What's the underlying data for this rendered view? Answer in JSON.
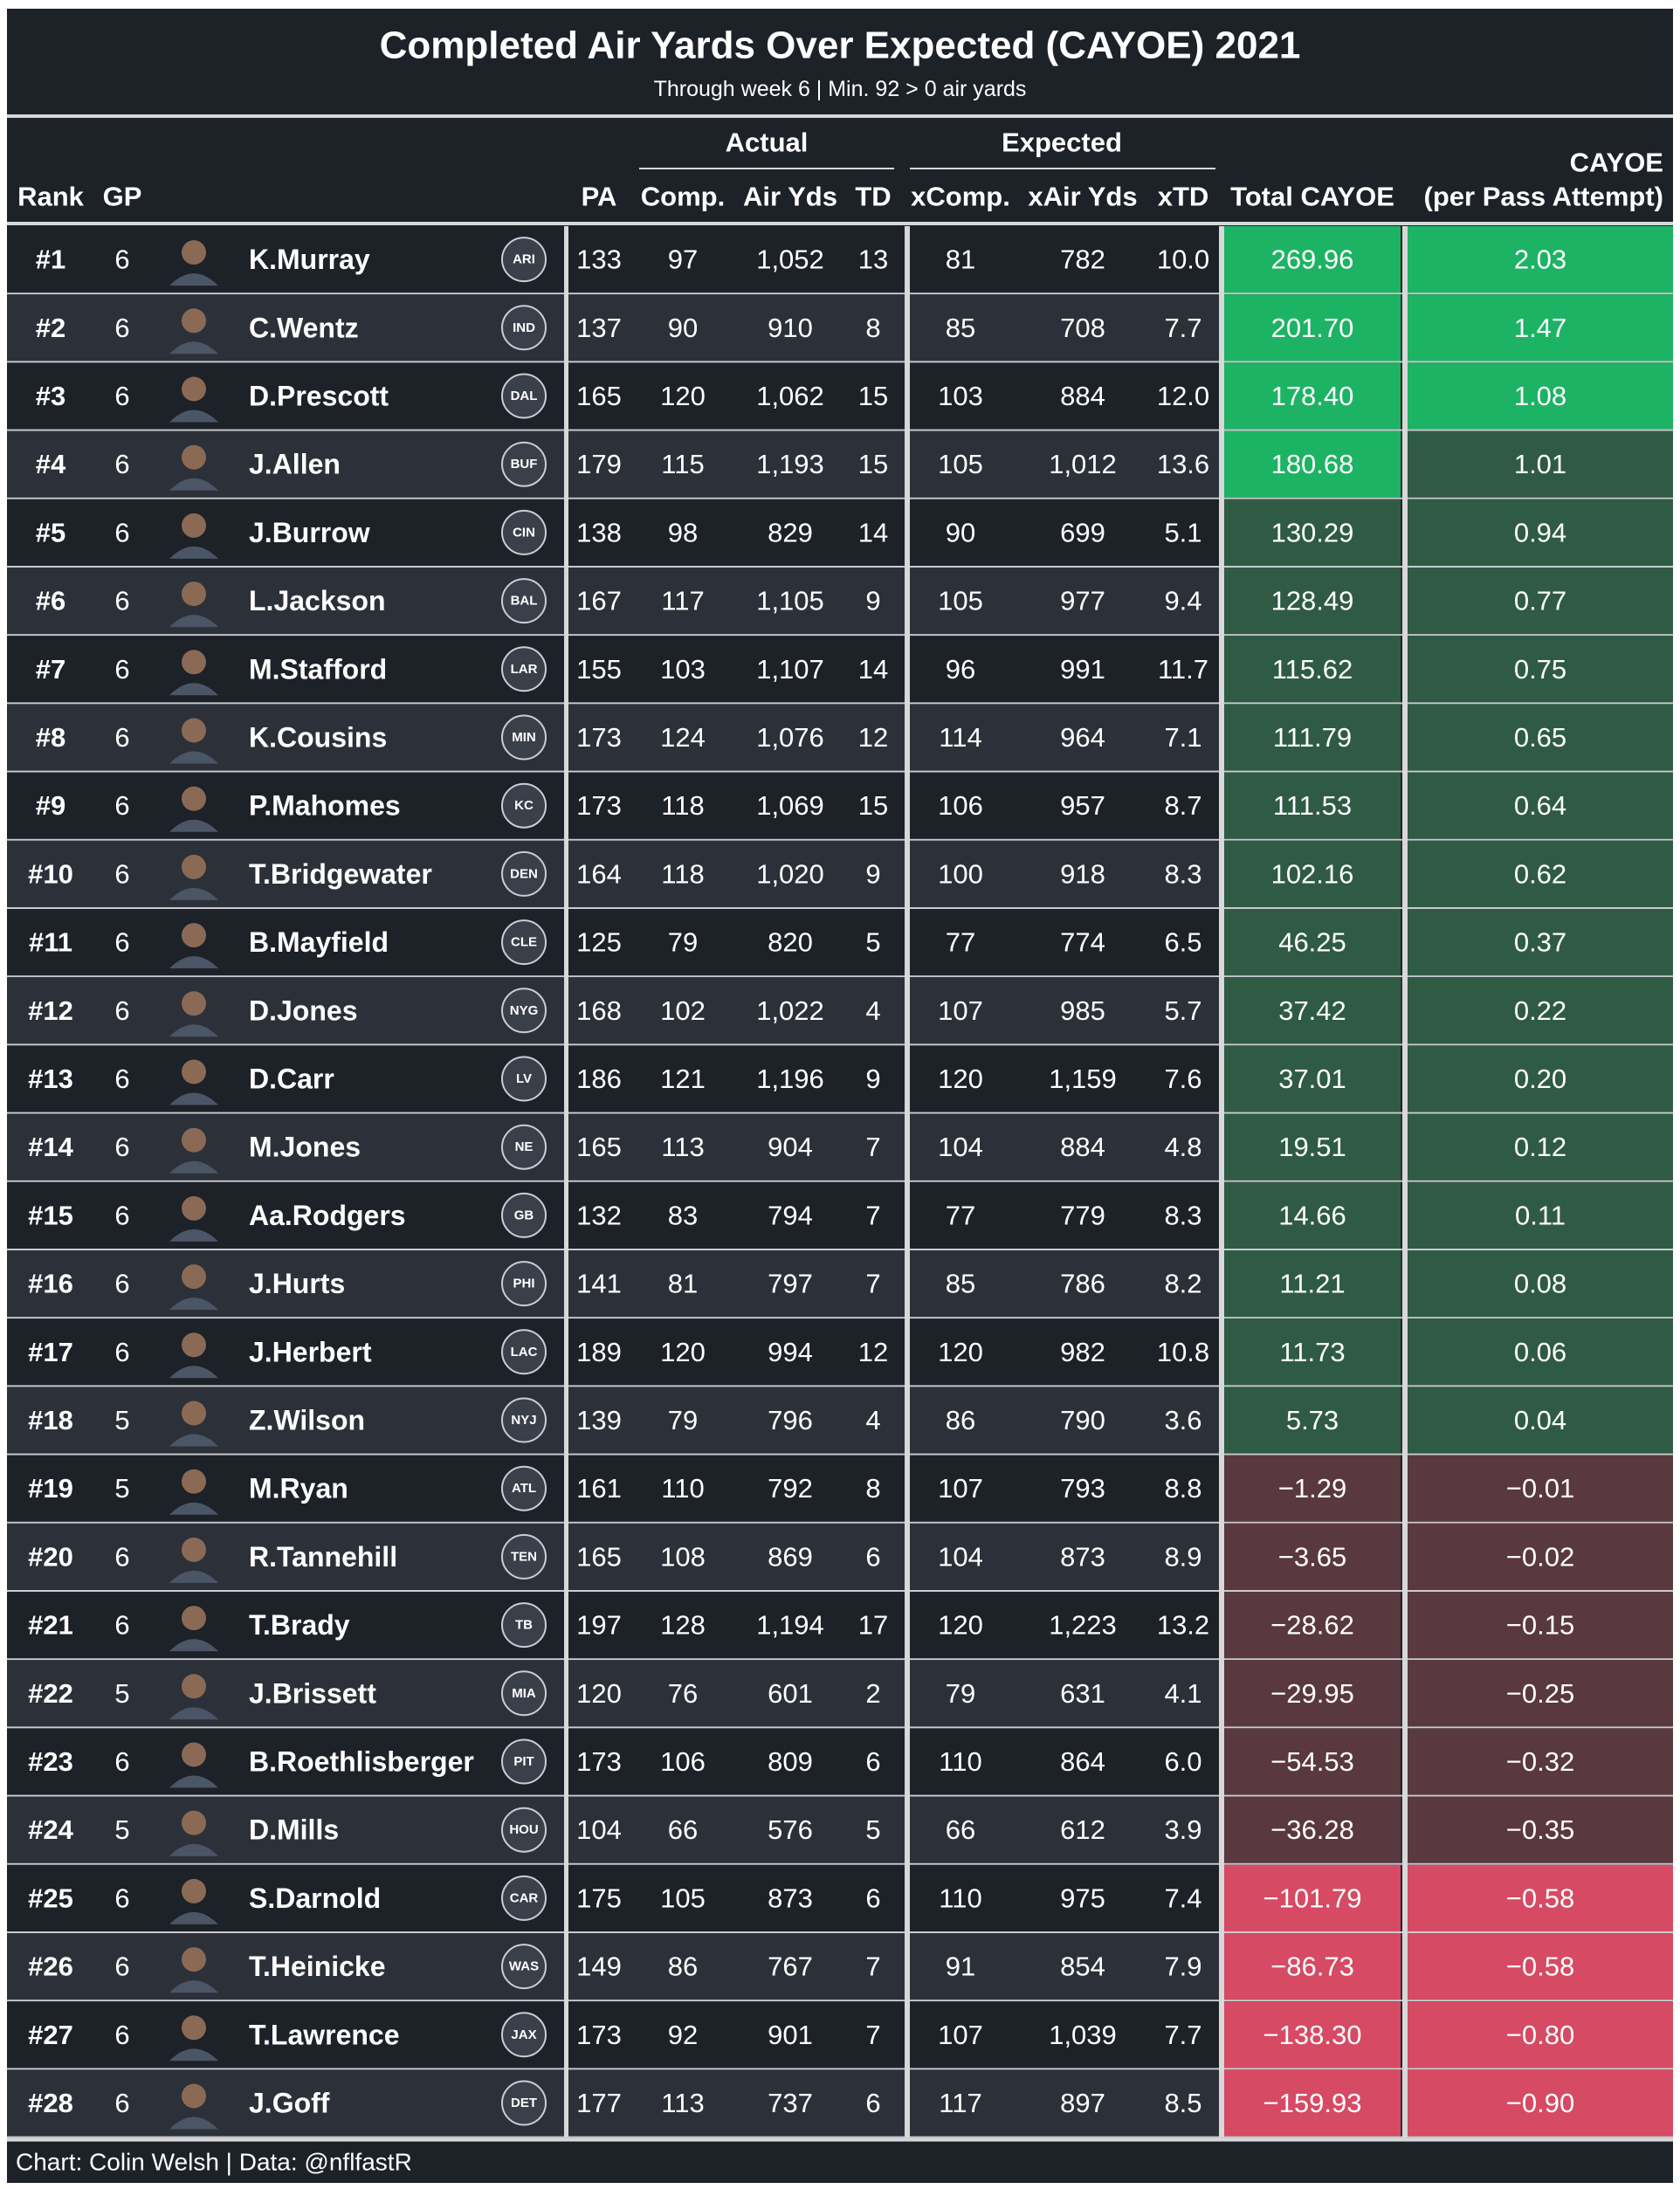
{
  "title": "Completed Air Yards Over Expected (CAYOE) 2021",
  "subtitle": "Through week 6 | Min. 92 > 0 air yards",
  "footer": "Chart: Colin Welsh | Data: @nflfastR",
  "group_headers": {
    "actual": "Actual",
    "expected": "Expected"
  },
  "columns": {
    "rank": "Rank",
    "gp": "GP",
    "pa": "PA",
    "comp": "Comp.",
    "air_yds": "Air Yds",
    "td": "TD",
    "xcomp": "xComp.",
    "xair_yds": "xAir Yds",
    "xtd": "xTD",
    "total_cayoe": "Total CAYOE",
    "cayoe_top": "CAYOE",
    "cayoe_bottom": "(per Pass Attempt)"
  },
  "colors": {
    "background": "#1d2128",
    "row_dark": "#1d2128",
    "row_light": "#2c3139",
    "separator": "#d8d8d8",
    "text": "#ffffff",
    "pos_strong": "#1db364",
    "pos_mid": "#2f5b45",
    "neg_mid": "#5a3840",
    "neg_strong": "#d64a63"
  },
  "chart_data": {
    "type": "table",
    "rows": [
      {
        "rank": "#1",
        "gp": 6,
        "player": "K.Murray",
        "team": "ARI",
        "team_icon": "cardinals-logo-icon",
        "pa": 133,
        "comp": 97,
        "air_yds": "1,052",
        "td": 13,
        "xcomp": 81,
        "xair_yds": "782",
        "xtd": "10.0",
        "total_cayoe": "269.96",
        "cayoe_per_pa": "2.03",
        "tier_total": "pos_strong",
        "tier_pa": "pos_strong"
      },
      {
        "rank": "#2",
        "gp": 6,
        "player": "C.Wentz",
        "team": "IND",
        "team_icon": "colts-logo-icon",
        "pa": 137,
        "comp": 90,
        "air_yds": "910",
        "td": 8,
        "xcomp": 85,
        "xair_yds": "708",
        "xtd": "7.7",
        "total_cayoe": "201.70",
        "cayoe_per_pa": "1.47",
        "tier_total": "pos_strong",
        "tier_pa": "pos_strong"
      },
      {
        "rank": "#3",
        "gp": 6,
        "player": "D.Prescott",
        "team": "DAL",
        "team_icon": "cowboys-logo-icon",
        "pa": 165,
        "comp": 120,
        "air_yds": "1,062",
        "td": 15,
        "xcomp": 103,
        "xair_yds": "884",
        "xtd": "12.0",
        "total_cayoe": "178.40",
        "cayoe_per_pa": "1.08",
        "tier_total": "pos_strong",
        "tier_pa": "pos_strong"
      },
      {
        "rank": "#4",
        "gp": 6,
        "player": "J.Allen",
        "team": "BUF",
        "team_icon": "bills-logo-icon",
        "pa": 179,
        "comp": 115,
        "air_yds": "1,193",
        "td": 15,
        "xcomp": 105,
        "xair_yds": "1,012",
        "xtd": "13.6",
        "total_cayoe": "180.68",
        "cayoe_per_pa": "1.01",
        "tier_total": "pos_strong",
        "tier_pa": "pos_mid"
      },
      {
        "rank": "#5",
        "gp": 6,
        "player": "J.Burrow",
        "team": "CIN",
        "team_icon": "bengals-logo-icon",
        "pa": 138,
        "comp": 98,
        "air_yds": "829",
        "td": 14,
        "xcomp": 90,
        "xair_yds": "699",
        "xtd": "5.1",
        "total_cayoe": "130.29",
        "cayoe_per_pa": "0.94",
        "tier_total": "pos_mid",
        "tier_pa": "pos_mid"
      },
      {
        "rank": "#6",
        "gp": 6,
        "player": "L.Jackson",
        "team": "BAL",
        "team_icon": "ravens-logo-icon",
        "pa": 167,
        "comp": 117,
        "air_yds": "1,105",
        "td": 9,
        "xcomp": 105,
        "xair_yds": "977",
        "xtd": "9.4",
        "total_cayoe": "128.49",
        "cayoe_per_pa": "0.77",
        "tier_total": "pos_mid",
        "tier_pa": "pos_mid"
      },
      {
        "rank": "#7",
        "gp": 6,
        "player": "M.Stafford",
        "team": "LAR",
        "team_icon": "rams-logo-icon",
        "pa": 155,
        "comp": 103,
        "air_yds": "1,107",
        "td": 14,
        "xcomp": 96,
        "xair_yds": "991",
        "xtd": "11.7",
        "total_cayoe": "115.62",
        "cayoe_per_pa": "0.75",
        "tier_total": "pos_mid",
        "tier_pa": "pos_mid"
      },
      {
        "rank": "#8",
        "gp": 6,
        "player": "K.Cousins",
        "team": "MIN",
        "team_icon": "vikings-logo-icon",
        "pa": 173,
        "comp": 124,
        "air_yds": "1,076",
        "td": 12,
        "xcomp": 114,
        "xair_yds": "964",
        "xtd": "7.1",
        "total_cayoe": "111.79",
        "cayoe_per_pa": "0.65",
        "tier_total": "pos_mid",
        "tier_pa": "pos_mid"
      },
      {
        "rank": "#9",
        "gp": 6,
        "player": "P.Mahomes",
        "team": "KC",
        "team_icon": "chiefs-logo-icon",
        "pa": 173,
        "comp": 118,
        "air_yds": "1,069",
        "td": 15,
        "xcomp": 106,
        "xair_yds": "957",
        "xtd": "8.7",
        "total_cayoe": "111.53",
        "cayoe_per_pa": "0.64",
        "tier_total": "pos_mid",
        "tier_pa": "pos_mid"
      },
      {
        "rank": "#10",
        "gp": 6,
        "player": "T.Bridgewater",
        "team": "DEN",
        "team_icon": "broncos-logo-icon",
        "pa": 164,
        "comp": 118,
        "air_yds": "1,020",
        "td": 9,
        "xcomp": 100,
        "xair_yds": "918",
        "xtd": "8.3",
        "total_cayoe": "102.16",
        "cayoe_per_pa": "0.62",
        "tier_total": "pos_mid",
        "tier_pa": "pos_mid"
      },
      {
        "rank": "#11",
        "gp": 6,
        "player": "B.Mayfield",
        "team": "CLE",
        "team_icon": "browns-logo-icon",
        "pa": 125,
        "comp": 79,
        "air_yds": "820",
        "td": 5,
        "xcomp": 77,
        "xair_yds": "774",
        "xtd": "6.5",
        "total_cayoe": "46.25",
        "cayoe_per_pa": "0.37",
        "tier_total": "pos_mid",
        "tier_pa": "pos_mid"
      },
      {
        "rank": "#12",
        "gp": 6,
        "player": "D.Jones",
        "team": "NYG",
        "team_icon": "giants-logo-icon",
        "pa": 168,
        "comp": 102,
        "air_yds": "1,022",
        "td": 4,
        "xcomp": 107,
        "xair_yds": "985",
        "xtd": "5.7",
        "total_cayoe": "37.42",
        "cayoe_per_pa": "0.22",
        "tier_total": "pos_mid",
        "tier_pa": "pos_mid"
      },
      {
        "rank": "#13",
        "gp": 6,
        "player": "D.Carr",
        "team": "LV",
        "team_icon": "raiders-logo-icon",
        "pa": 186,
        "comp": 121,
        "air_yds": "1,196",
        "td": 9,
        "xcomp": 120,
        "xair_yds": "1,159",
        "xtd": "7.6",
        "total_cayoe": "37.01",
        "cayoe_per_pa": "0.20",
        "tier_total": "pos_mid",
        "tier_pa": "pos_mid"
      },
      {
        "rank": "#14",
        "gp": 6,
        "player": "M.Jones",
        "team": "NE",
        "team_icon": "patriots-logo-icon",
        "pa": 165,
        "comp": 113,
        "air_yds": "904",
        "td": 7,
        "xcomp": 104,
        "xair_yds": "884",
        "xtd": "4.8",
        "total_cayoe": "19.51",
        "cayoe_per_pa": "0.12",
        "tier_total": "pos_mid",
        "tier_pa": "pos_mid"
      },
      {
        "rank": "#15",
        "gp": 6,
        "player": "Aa.Rodgers",
        "team": "GB",
        "team_icon": "packers-logo-icon",
        "pa": 132,
        "comp": 83,
        "air_yds": "794",
        "td": 7,
        "xcomp": 77,
        "xair_yds": "779",
        "xtd": "8.3",
        "total_cayoe": "14.66",
        "cayoe_per_pa": "0.11",
        "tier_total": "pos_mid",
        "tier_pa": "pos_mid"
      },
      {
        "rank": "#16",
        "gp": 6,
        "player": "J.Hurts",
        "team": "PHI",
        "team_icon": "eagles-logo-icon",
        "pa": 141,
        "comp": 81,
        "air_yds": "797",
        "td": 7,
        "xcomp": 85,
        "xair_yds": "786",
        "xtd": "8.2",
        "total_cayoe": "11.21",
        "cayoe_per_pa": "0.08",
        "tier_total": "pos_mid",
        "tier_pa": "pos_mid"
      },
      {
        "rank": "#17",
        "gp": 6,
        "player": "J.Herbert",
        "team": "LAC",
        "team_icon": "chargers-logo-icon",
        "pa": 189,
        "comp": 120,
        "air_yds": "994",
        "td": 12,
        "xcomp": 120,
        "xair_yds": "982",
        "xtd": "10.8",
        "total_cayoe": "11.73",
        "cayoe_per_pa": "0.06",
        "tier_total": "pos_mid",
        "tier_pa": "pos_mid"
      },
      {
        "rank": "#18",
        "gp": 5,
        "player": "Z.Wilson",
        "team": "NYJ",
        "team_icon": "jets-logo-icon",
        "pa": 139,
        "comp": 79,
        "air_yds": "796",
        "td": 4,
        "xcomp": 86,
        "xair_yds": "790",
        "xtd": "3.6",
        "total_cayoe": "5.73",
        "cayoe_per_pa": "0.04",
        "tier_total": "pos_mid",
        "tier_pa": "pos_mid"
      },
      {
        "rank": "#19",
        "gp": 5,
        "player": "M.Ryan",
        "team": "ATL",
        "team_icon": "falcons-logo-icon",
        "pa": 161,
        "comp": 110,
        "air_yds": "792",
        "td": 8,
        "xcomp": 107,
        "xair_yds": "793",
        "xtd": "8.8",
        "total_cayoe": "−1.29",
        "cayoe_per_pa": "−0.01",
        "tier_total": "neg_mid",
        "tier_pa": "neg_mid"
      },
      {
        "rank": "#20",
        "gp": 6,
        "player": "R.Tannehill",
        "team": "TEN",
        "team_icon": "titans-logo-icon",
        "pa": 165,
        "comp": 108,
        "air_yds": "869",
        "td": 6,
        "xcomp": 104,
        "xair_yds": "873",
        "xtd": "8.9",
        "total_cayoe": "−3.65",
        "cayoe_per_pa": "−0.02",
        "tier_total": "neg_mid",
        "tier_pa": "neg_mid"
      },
      {
        "rank": "#21",
        "gp": 6,
        "player": "T.Brady",
        "team": "TB",
        "team_icon": "buccaneers-logo-icon",
        "pa": 197,
        "comp": 128,
        "air_yds": "1,194",
        "td": 17,
        "xcomp": 120,
        "xair_yds": "1,223",
        "xtd": "13.2",
        "total_cayoe": "−28.62",
        "cayoe_per_pa": "−0.15",
        "tier_total": "neg_mid",
        "tier_pa": "neg_mid"
      },
      {
        "rank": "#22",
        "gp": 5,
        "player": "J.Brissett",
        "team": "MIA",
        "team_icon": "dolphins-logo-icon",
        "pa": 120,
        "comp": 76,
        "air_yds": "601",
        "td": 2,
        "xcomp": 79,
        "xair_yds": "631",
        "xtd": "4.1",
        "total_cayoe": "−29.95",
        "cayoe_per_pa": "−0.25",
        "tier_total": "neg_mid",
        "tier_pa": "neg_mid"
      },
      {
        "rank": "#23",
        "gp": 6,
        "player": "B.Roethlisberger",
        "team": "PIT",
        "team_icon": "steelers-logo-icon",
        "pa": 173,
        "comp": 106,
        "air_yds": "809",
        "td": 6,
        "xcomp": 110,
        "xair_yds": "864",
        "xtd": "6.0",
        "total_cayoe": "−54.53",
        "cayoe_per_pa": "−0.32",
        "tier_total": "neg_mid",
        "tier_pa": "neg_mid"
      },
      {
        "rank": "#24",
        "gp": 5,
        "player": "D.Mills",
        "team": "HOU",
        "team_icon": "texans-logo-icon",
        "pa": 104,
        "comp": 66,
        "air_yds": "576",
        "td": 5,
        "xcomp": 66,
        "xair_yds": "612",
        "xtd": "3.9",
        "total_cayoe": "−36.28",
        "cayoe_per_pa": "−0.35",
        "tier_total": "neg_mid",
        "tier_pa": "neg_mid"
      },
      {
        "rank": "#25",
        "gp": 6,
        "player": "S.Darnold",
        "team": "CAR",
        "team_icon": "panthers-logo-icon",
        "pa": 175,
        "comp": 105,
        "air_yds": "873",
        "td": 6,
        "xcomp": 110,
        "xair_yds": "975",
        "xtd": "7.4",
        "total_cayoe": "−101.79",
        "cayoe_per_pa": "−0.58",
        "tier_total": "neg_strong",
        "tier_pa": "neg_strong"
      },
      {
        "rank": "#26",
        "gp": 6,
        "player": "T.Heinicke",
        "team": "WAS",
        "team_icon": "washington-logo-icon",
        "pa": 149,
        "comp": 86,
        "air_yds": "767",
        "td": 7,
        "xcomp": 91,
        "xair_yds": "854",
        "xtd": "7.9",
        "total_cayoe": "−86.73",
        "cayoe_per_pa": "−0.58",
        "tier_total": "neg_strong",
        "tier_pa": "neg_strong"
      },
      {
        "rank": "#27",
        "gp": 6,
        "player": "T.Lawrence",
        "team": "JAX",
        "team_icon": "jaguars-logo-icon",
        "pa": 173,
        "comp": 92,
        "air_yds": "901",
        "td": 7,
        "xcomp": 107,
        "xair_yds": "1,039",
        "xtd": "7.7",
        "total_cayoe": "−138.30",
        "cayoe_per_pa": "−0.80",
        "tier_total": "neg_strong",
        "tier_pa": "neg_strong"
      },
      {
        "rank": "#28",
        "gp": 6,
        "player": "J.Goff",
        "team": "DET",
        "team_icon": "lions-logo-icon",
        "pa": 177,
        "comp": 113,
        "air_yds": "737",
        "td": 6,
        "xcomp": 117,
        "xair_yds": "897",
        "xtd": "8.5",
        "total_cayoe": "−159.93",
        "cayoe_per_pa": "−0.90",
        "tier_total": "neg_strong",
        "tier_pa": "neg_strong"
      }
    ]
  }
}
